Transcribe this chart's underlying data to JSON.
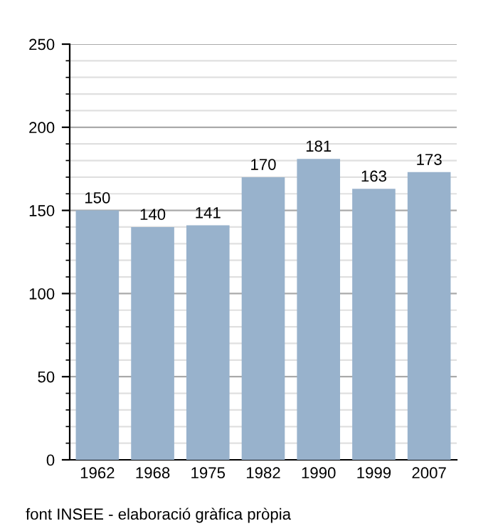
{
  "chart_data": {
    "type": "bar",
    "categories": [
      "1962",
      "1968",
      "1975",
      "1982",
      "1990",
      "1999",
      "2007"
    ],
    "values": [
      150,
      140,
      141,
      170,
      181,
      163,
      173
    ],
    "color": "#98b2cc",
    "ylim": [
      0,
      250
    ],
    "yticks": [
      0,
      50,
      100,
      150,
      200,
      250
    ],
    "grid": "y",
    "data_labels": true,
    "annotations": [
      "font INSEE - elaboració gràfica pròpia"
    ]
  }
}
